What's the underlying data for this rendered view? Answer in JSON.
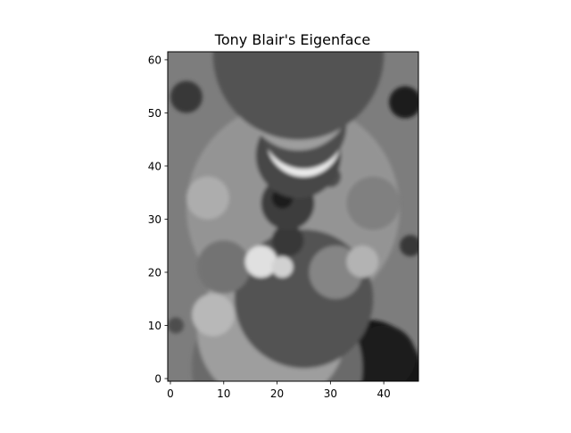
{
  "chart_data": {
    "type": "heatmap",
    "title": "Tony Blair's Eigenface",
    "colormap": "gray",
    "grid": false,
    "xlabel": "",
    "ylabel": "",
    "image_shape": [
      62,
      47
    ],
    "xlim": [
      -0.5,
      46.5
    ],
    "ylim": [
      61.5,
      -0.5
    ],
    "x_ticks": [
      0,
      10,
      20,
      30,
      40
    ],
    "y_ticks": [
      0,
      10,
      20,
      30,
      40,
      50,
      60
    ],
    "x_tick_labels": [
      "0",
      "10",
      "20",
      "30",
      "40"
    ],
    "y_tick_labels": [
      "0",
      "10",
      "20",
      "30",
      "40",
      "50",
      "60"
    ]
  }
}
